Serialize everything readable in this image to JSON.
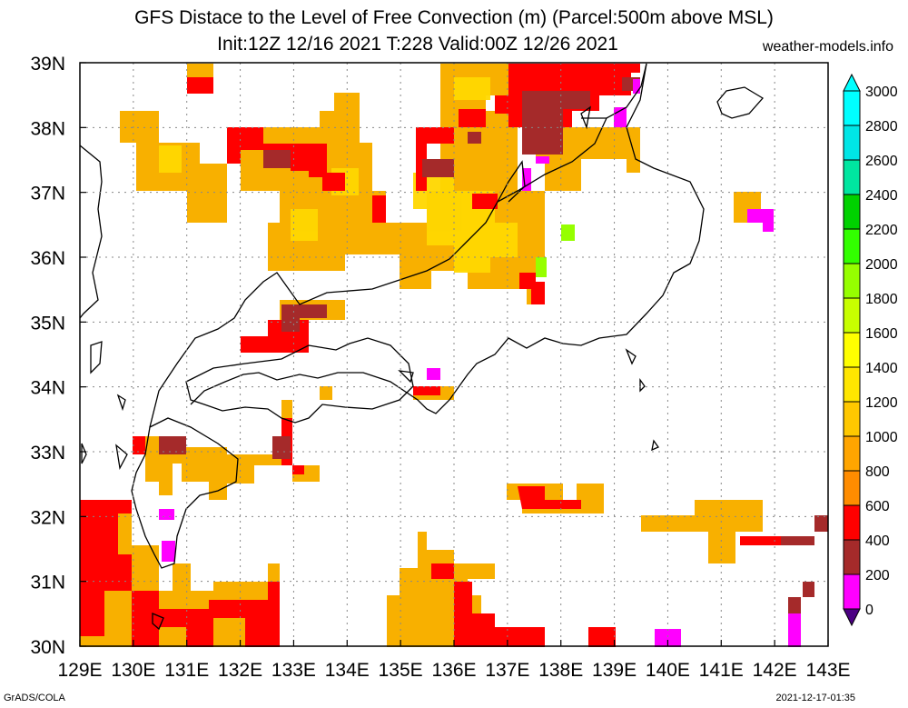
{
  "title_line1": "GFS Distace to the Level of Free Convection (m) (Parcel:500m above MSL)",
  "title_line2": "Init:12Z 12/16 2021 T:228 Valid:00Z 12/26 2021",
  "credit": "weather-models.info",
  "footer_left": "GrADS/COLA",
  "footer_right": "2021-12-17-01:35",
  "map": {
    "lon_range": [
      129,
      143
    ],
    "lat_range": [
      30,
      39
    ],
    "lon_ticks": [
      "129E",
      "130E",
      "131E",
      "132E",
      "133E",
      "134E",
      "135E",
      "136E",
      "137E",
      "138E",
      "139E",
      "140E",
      "141E",
      "142E",
      "143E"
    ],
    "lat_ticks": [
      "30N",
      "31N",
      "32N",
      "33N",
      "34N",
      "35N",
      "36N",
      "37N",
      "38N",
      "39N"
    ],
    "grid": "dotted"
  },
  "colorbar": {
    "levels": [
      "0",
      "200",
      "400",
      "600",
      "800",
      "1000",
      "1200",
      "1400",
      "1600",
      "1800",
      "2000",
      "2200",
      "2400",
      "2600",
      "2800",
      "3000"
    ],
    "colors": [
      "#4b0082",
      "#ff00ff",
      "#a52a2a",
      "#ff0000",
      "#ff8c00",
      "#ffa500",
      "#ffc800",
      "#ffe600",
      "#ffff00",
      "#c8ff00",
      "#96ff00",
      "#32ff00",
      "#00d200",
      "#00e6a0",
      "#00e6e6",
      "#00ffff"
    ]
  },
  "fill_colors": {
    "orange": "#f8b000",
    "yellow": "#ffd800",
    "red": "#ff0000",
    "brown": "#a52a2a",
    "magenta": "#ff00ff",
    "lime": "#96ff00"
  }
}
